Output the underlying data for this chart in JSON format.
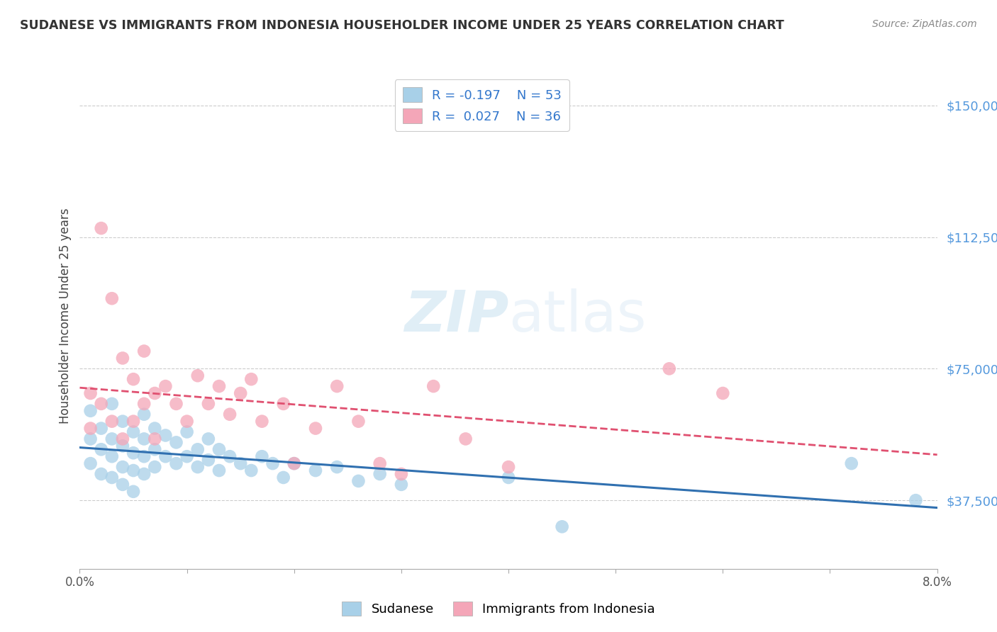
{
  "title": "SUDANESE VS IMMIGRANTS FROM INDONESIA HOUSEHOLDER INCOME UNDER 25 YEARS CORRELATION CHART",
  "source": "Source: ZipAtlas.com",
  "ylabel": "Householder Income Under 25 years",
  "y_ticks": [
    37500,
    75000,
    112500,
    150000
  ],
  "y_tick_labels": [
    "$37,500",
    "$75,000",
    "$112,500",
    "$150,000"
  ],
  "x_min": 0.0,
  "x_max": 0.08,
  "y_min": 18000,
  "y_max": 162000,
  "color_blue": "#A8D0E8",
  "color_pink": "#F4A6B8",
  "color_blue_line": "#3070B0",
  "color_pink_line": "#E05070",
  "watermark_zip": "ZIP",
  "watermark_atlas": "atlas",
  "sudanese_x": [
    0.001,
    0.001,
    0.001,
    0.002,
    0.002,
    0.002,
    0.003,
    0.003,
    0.003,
    0.003,
    0.004,
    0.004,
    0.004,
    0.004,
    0.005,
    0.005,
    0.005,
    0.005,
    0.006,
    0.006,
    0.006,
    0.006,
    0.007,
    0.007,
    0.007,
    0.008,
    0.008,
    0.009,
    0.009,
    0.01,
    0.01,
    0.011,
    0.011,
    0.012,
    0.012,
    0.013,
    0.013,
    0.014,
    0.015,
    0.016,
    0.017,
    0.018,
    0.019,
    0.02,
    0.022,
    0.024,
    0.026,
    0.028,
    0.03,
    0.04,
    0.045,
    0.072,
    0.078
  ],
  "sudanese_y": [
    63000,
    55000,
    48000,
    58000,
    52000,
    45000,
    65000,
    55000,
    50000,
    44000,
    60000,
    53000,
    47000,
    42000,
    57000,
    51000,
    46000,
    40000,
    62000,
    55000,
    50000,
    45000,
    58000,
    52000,
    47000,
    56000,
    50000,
    54000,
    48000,
    57000,
    50000,
    52000,
    47000,
    55000,
    49000,
    52000,
    46000,
    50000,
    48000,
    46000,
    50000,
    48000,
    44000,
    48000,
    46000,
    47000,
    43000,
    45000,
    42000,
    44000,
    30000,
    48000,
    37500
  ],
  "indonesia_x": [
    0.001,
    0.001,
    0.002,
    0.002,
    0.003,
    0.003,
    0.004,
    0.004,
    0.005,
    0.005,
    0.006,
    0.006,
    0.007,
    0.007,
    0.008,
    0.009,
    0.01,
    0.011,
    0.012,
    0.013,
    0.014,
    0.015,
    0.016,
    0.017,
    0.019,
    0.02,
    0.022,
    0.024,
    0.026,
    0.028,
    0.03,
    0.033,
    0.036,
    0.04,
    0.055,
    0.06
  ],
  "indonesia_y": [
    68000,
    58000,
    115000,
    65000,
    95000,
    60000,
    78000,
    55000,
    72000,
    60000,
    80000,
    65000,
    68000,
    55000,
    70000,
    65000,
    60000,
    73000,
    65000,
    70000,
    62000,
    68000,
    72000,
    60000,
    65000,
    48000,
    58000,
    70000,
    60000,
    48000,
    45000,
    70000,
    55000,
    47000,
    75000,
    68000
  ]
}
